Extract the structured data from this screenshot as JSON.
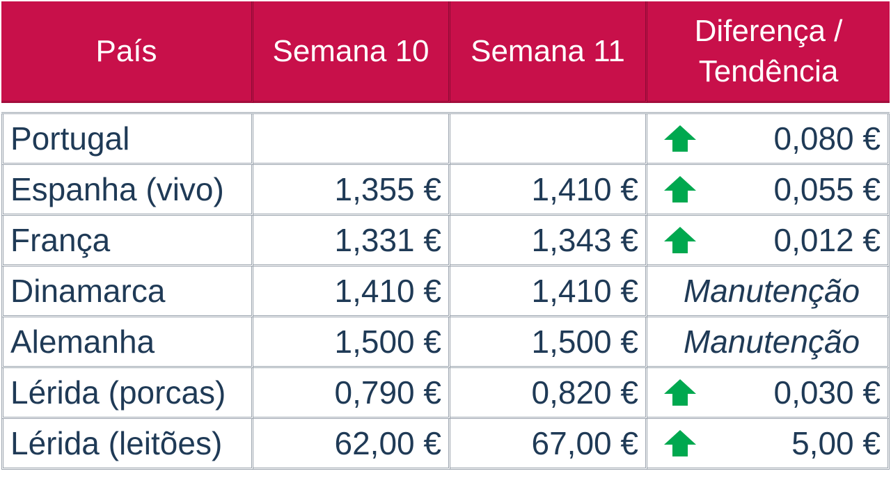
{
  "table": {
    "headers": {
      "country": "País",
      "week10": "Semana 10",
      "week11": "Semana 11",
      "diff_line1": "Diferença /",
      "diff_line2": "Tendência"
    },
    "rows": [
      {
        "country": "Portugal",
        "week10": "",
        "week11": "",
        "trend": "up",
        "diff": "0,080 €"
      },
      {
        "country": "Espanha (vivo)",
        "week10": "1,355 €",
        "week11": "1,410 €",
        "trend": "up",
        "diff": "0,055 €"
      },
      {
        "country": "França",
        "week10": "1,331 €",
        "week11": "1,343 €",
        "trend": "up",
        "diff": "0,012 €"
      },
      {
        "country": "Dinamarca",
        "week10": "1,410 €",
        "week11": "1,410 €",
        "trend": "none",
        "diff": "Manutenção"
      },
      {
        "country": "Alemanha",
        "week10": "1,500 €",
        "week11": "1,500 €",
        "trend": "none",
        "diff": "Manutenção"
      },
      {
        "country": "Lérida (porcas)",
        "week10": "0,790 €",
        "week11": "0,820 €",
        "trend": "up",
        "diff": "0,030 €"
      },
      {
        "country": "Lérida (leitões)",
        "week10": "62,00 €",
        "week11": "67,00 €",
        "trend": "up",
        "diff": "5,00 €"
      }
    ]
  },
  "colors": {
    "header_bg": "#c8104a",
    "header_text": "#ffffff",
    "body_text": "#1f3a56",
    "up_arrow": "#00a84f"
  }
}
